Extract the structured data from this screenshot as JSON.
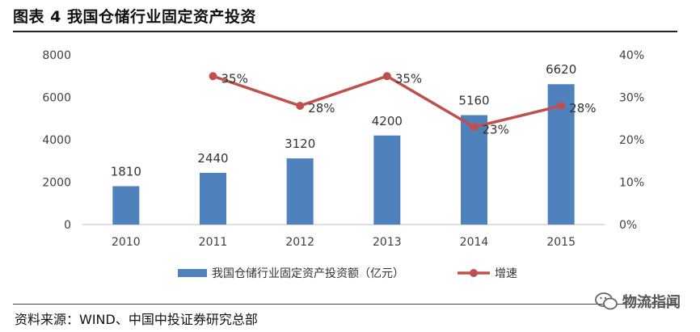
{
  "figure": {
    "title": "图表 4  我国仓储行业固定资产投资",
    "source": "资料来源：WIND、中国中投证券研究总部",
    "watermark": "物流指闻"
  },
  "colors": {
    "bar": "#4f81bd",
    "line": "#c0504d",
    "axis": "#bfbfbf",
    "text": "#404040"
  },
  "chart_data": {
    "type": "bar",
    "categories": [
      "2010",
      "2011",
      "2012",
      "2013",
      "2014",
      "2015"
    ],
    "series": [
      {
        "name": "我国仓储行业固定资产投资额（亿元）",
        "type": "bar",
        "axis": "left",
        "values": [
          1810,
          2440,
          3120,
          4200,
          5160,
          6620
        ],
        "labels": [
          "1810",
          "2440",
          "3120",
          "4200",
          "5160",
          "6620"
        ]
      },
      {
        "name": "增速",
        "type": "line",
        "axis": "right",
        "values": [
          null,
          35,
          28,
          35,
          23,
          28
        ],
        "labels": [
          "",
          "35%",
          "28%",
          "35%",
          "23%",
          "28%"
        ]
      }
    ],
    "left_axis": {
      "min": 0,
      "max": 8000,
      "ticks": [
        "0",
        "2000",
        "4000",
        "6000",
        "8000"
      ]
    },
    "right_axis": {
      "min": 0,
      "max": 40,
      "ticks": [
        "0%",
        "10%",
        "20%",
        "30%",
        "40%"
      ]
    },
    "legend_position": "bottom",
    "grid": false
  }
}
